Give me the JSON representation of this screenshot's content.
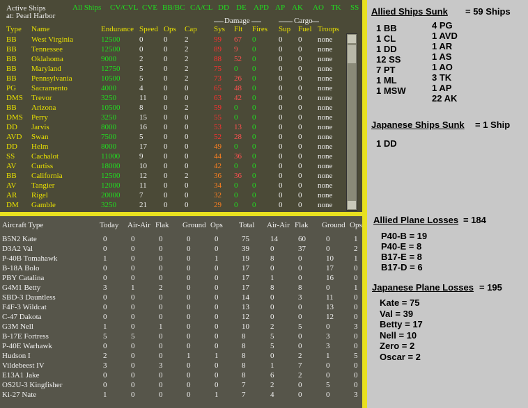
{
  "header": {
    "title": "Active Ships",
    "location": "at: Pearl Harbor"
  },
  "tabs": [
    "All Ships",
    "CV/CVL",
    "CVE",
    "BB/BC",
    "CA/CL",
    "DD",
    "DE",
    "APD",
    "AP",
    "AK",
    "AO",
    "TK",
    "SS"
  ],
  "ship_table": {
    "group_headers": [
      "Damage",
      "Cargo"
    ],
    "columns": [
      "Type",
      "Name",
      "Endurance",
      "Speed",
      "Ops",
      "Cap",
      "Sys",
      "Flt",
      "Fires",
      "Sup",
      "Fuel",
      "Troops"
    ],
    "rows": [
      [
        "BB",
        "West Virginia",
        12500,
        0,
        0,
        2,
        99,
        67,
        0,
        0,
        0,
        "none"
      ],
      [
        "BB",
        "Tennessee",
        12500,
        0,
        0,
        2,
        89,
        9,
        0,
        0,
        0,
        "none"
      ],
      [
        "BB",
        "Oklahoma",
        9000,
        2,
        0,
        2,
        88,
        52,
        0,
        0,
        0,
        "none"
      ],
      [
        "BB",
        "Maryland",
        12750,
        5,
        0,
        2,
        75,
        0,
        0,
        0,
        0,
        "none"
      ],
      [
        "BB",
        "Pennsylvania",
        10500,
        5,
        0,
        2,
        73,
        26,
        0,
        0,
        0,
        "none"
      ],
      [
        "PG",
        "Sacramento",
        4000,
        4,
        0,
        0,
        65,
        48,
        0,
        0,
        0,
        "none"
      ],
      [
        "DMS",
        "Trevor",
        3250,
        11,
        0,
        0,
        63,
        42,
        0,
        0,
        0,
        "none"
      ],
      [
        "BB",
        "Arizona",
        10500,
        8,
        0,
        2,
        59,
        0,
        0,
        0,
        0,
        "none"
      ],
      [
        "DMS",
        "Perry",
        3250,
        15,
        0,
        0,
        55,
        0,
        0,
        0,
        0,
        "none"
      ],
      [
        "DD",
        "Jarvis",
        8000,
        16,
        0,
        0,
        53,
        13,
        0,
        0,
        0,
        "none"
      ],
      [
        "AVD",
        "Swan",
        7500,
        5,
        0,
        0,
        52,
        28,
        0,
        0,
        0,
        "none"
      ],
      [
        "DD",
        "Helm",
        8000,
        17,
        0,
        0,
        49,
        0,
        0,
        0,
        0,
        "none"
      ],
      [
        "SS",
        "Cachalot",
        11000,
        9,
        0,
        0,
        44,
        36,
        0,
        0,
        0,
        "none"
      ],
      [
        "AV",
        "Curtiss",
        18000,
        10,
        0,
        0,
        42,
        0,
        0,
        0,
        0,
        "none"
      ],
      [
        "BB",
        "California",
        12500,
        12,
        0,
        2,
        36,
        36,
        0,
        0,
        0,
        "none"
      ],
      [
        "AV",
        "Tangier",
        12000,
        11,
        0,
        0,
        34,
        0,
        0,
        0,
        0,
        "none"
      ],
      [
        "AR",
        "Rigel",
        20000,
        7,
        0,
        0,
        32,
        0,
        0,
        0,
        0,
        "none"
      ],
      [
        "DM",
        "Gamble",
        3250,
        21,
        0,
        0,
        29,
        0,
        0,
        0,
        0,
        "none"
      ]
    ]
  },
  "aircraft_table": {
    "columns": [
      "Aircraft Type",
      "Today",
      "Air-Air",
      "Flak",
      "Ground",
      "Ops",
      "Total",
      "Air-Air",
      "Flak",
      "Ground",
      "Ops"
    ],
    "rows": [
      [
        "B5N2 Kate",
        0,
        0,
        0,
        0,
        0,
        75,
        14,
        60,
        0,
        1
      ],
      [
        "D3A2 Val",
        0,
        0,
        0,
        0,
        0,
        39,
        0,
        37,
        0,
        2
      ],
      [
        "P-40B Tomahawk",
        1,
        0,
        0,
        0,
        1,
        19,
        8,
        0,
        10,
        1
      ],
      [
        "B-18A Bolo",
        0,
        0,
        0,
        0,
        0,
        17,
        0,
        0,
        17,
        0
      ],
      [
        "PBY Catalina",
        0,
        0,
        0,
        0,
        0,
        17,
        1,
        0,
        16,
        0
      ],
      [
        "G4M1 Betty",
        3,
        1,
        2,
        0,
        0,
        17,
        8,
        8,
        0,
        1
      ],
      [
        "SBD-3 Dauntless",
        0,
        0,
        0,
        0,
        0,
        14,
        0,
        3,
        11,
        0
      ],
      [
        "F4F-3 Wildcat",
        0,
        0,
        0,
        0,
        0,
        13,
        0,
        0,
        13,
        0
      ],
      [
        "C-47 Dakota",
        0,
        0,
        0,
        0,
        0,
        12,
        0,
        0,
        12,
        0
      ],
      [
        "G3M Nell",
        1,
        0,
        1,
        0,
        0,
        10,
        2,
        5,
        0,
        3
      ],
      [
        "B-17E Fortress",
        5,
        5,
        0,
        0,
        0,
        8,
        5,
        0,
        3,
        0
      ],
      [
        "P-40E Warhawk",
        0,
        0,
        0,
        0,
        0,
        8,
        5,
        0,
        3,
        0
      ],
      [
        "Hudson I",
        2,
        0,
        0,
        1,
        1,
        8,
        0,
        2,
        1,
        5
      ],
      [
        "Vildebeest IV",
        3,
        0,
        3,
        0,
        0,
        8,
        1,
        7,
        0,
        0
      ],
      [
        "E13A1 Jake",
        0,
        0,
        0,
        0,
        0,
        8,
        6,
        2,
        0,
        0
      ],
      [
        "OS2U-3 Kingfisher",
        0,
        0,
        0,
        0,
        0,
        7,
        2,
        0,
        5,
        0
      ],
      [
        "Ki-27 Nate",
        1,
        0,
        0,
        0,
        1,
        7,
        4,
        0,
        0,
        3
      ]
    ]
  },
  "summary": {
    "allied_ships": {
      "title": "Allied Ships Sunk",
      "total": "= 59 Ships",
      "left": [
        "1 BB",
        "1 CL",
        "1 DD",
        "12 SS",
        "7 PT",
        "1 ML",
        "1 MSW"
      ],
      "right": [
        "4 PG",
        "1 AVD",
        "1 AR",
        "1 AS",
        "1 AO",
        "3 TK",
        "1 AP",
        "22 AK"
      ]
    },
    "japanese_ships": {
      "title": "Japanese Ships Sunk",
      "total": "= 1 Ship",
      "items": [
        "1 DD"
      ]
    },
    "allied_planes": {
      "title": "Allied Plane Losses",
      "total": "= 184",
      "items": [
        "P40-B = 19",
        "P40-E = 8",
        "B17-E = 8",
        "B17-D = 6"
      ]
    },
    "japanese_planes": {
      "title": "Japanese Plane Losses",
      "total": "= 195",
      "items": [
        "Kate = 75",
        "Val = 39",
        "Betty = 17",
        "Nell = 10",
        "Zero = 2",
        "Oscar = 2"
      ]
    }
  }
}
